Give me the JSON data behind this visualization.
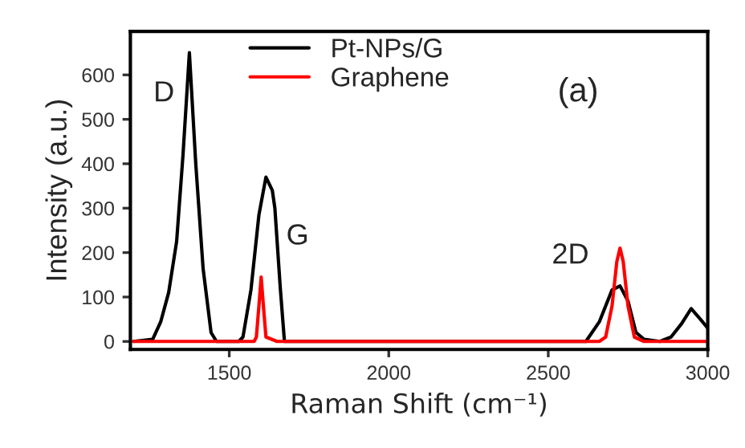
{
  "chart_data": {
    "type": "line",
    "xlabel": "Raman Shift (cm⁻¹)",
    "ylabel": "Intensity (a.u.)",
    "xlim": [
      1190,
      3000
    ],
    "ylim": [
      -18,
      698
    ],
    "xticks": [
      1500,
      2000,
      2500,
      3000
    ],
    "yticks": [
      0,
      100,
      200,
      300,
      400,
      500,
      600
    ],
    "grid": false,
    "legend": "top",
    "marker": "none",
    "line_style": "solid",
    "series": [
      {
        "name": "Pt-NPs/G",
        "color": "#000000",
        "x": [
          1200,
          1260,
          1285,
          1310,
          1335,
          1355,
          1375,
          1395,
          1418,
          1443,
          1460,
          1530,
          1543,
          1568,
          1593,
          1615,
          1635,
          1643,
          1660,
          1673,
          1700,
          2000,
          2400,
          2618,
          2660,
          2700,
          2725,
          2750,
          2775,
          2800,
          2850,
          2885,
          2918,
          2948,
          2977,
          3000
        ],
        "values": [
          0,
          5,
          44,
          110,
          225,
          420,
          650,
          400,
          164,
          20,
          0,
          0,
          10,
          116,
          285,
          370,
          340,
          300,
          120,
          0,
          0,
          0,
          0,
          0,
          44,
          116,
          125,
          91,
          20,
          5,
          0,
          10,
          40,
          74,
          50,
          30
        ]
      },
      {
        "name": "Graphene",
        "color": "#ff0000",
        "x": [
          1200,
          1400,
          1578,
          1585,
          1593,
          1600,
          1607,
          1615,
          1650,
          2000,
          2400,
          2660,
          2680,
          2700,
          2715,
          2725,
          2735,
          2750,
          2770,
          2800,
          3000
        ],
        "values": [
          0,
          0,
          0,
          10,
          80,
          145,
          80,
          10,
          0,
          0,
          0,
          0,
          10,
          80,
          180,
          210,
          180,
          80,
          10,
          0,
          0
        ]
      }
    ],
    "annotations": [
      "D",
      "G",
      "2D",
      "(a)"
    ]
  }
}
